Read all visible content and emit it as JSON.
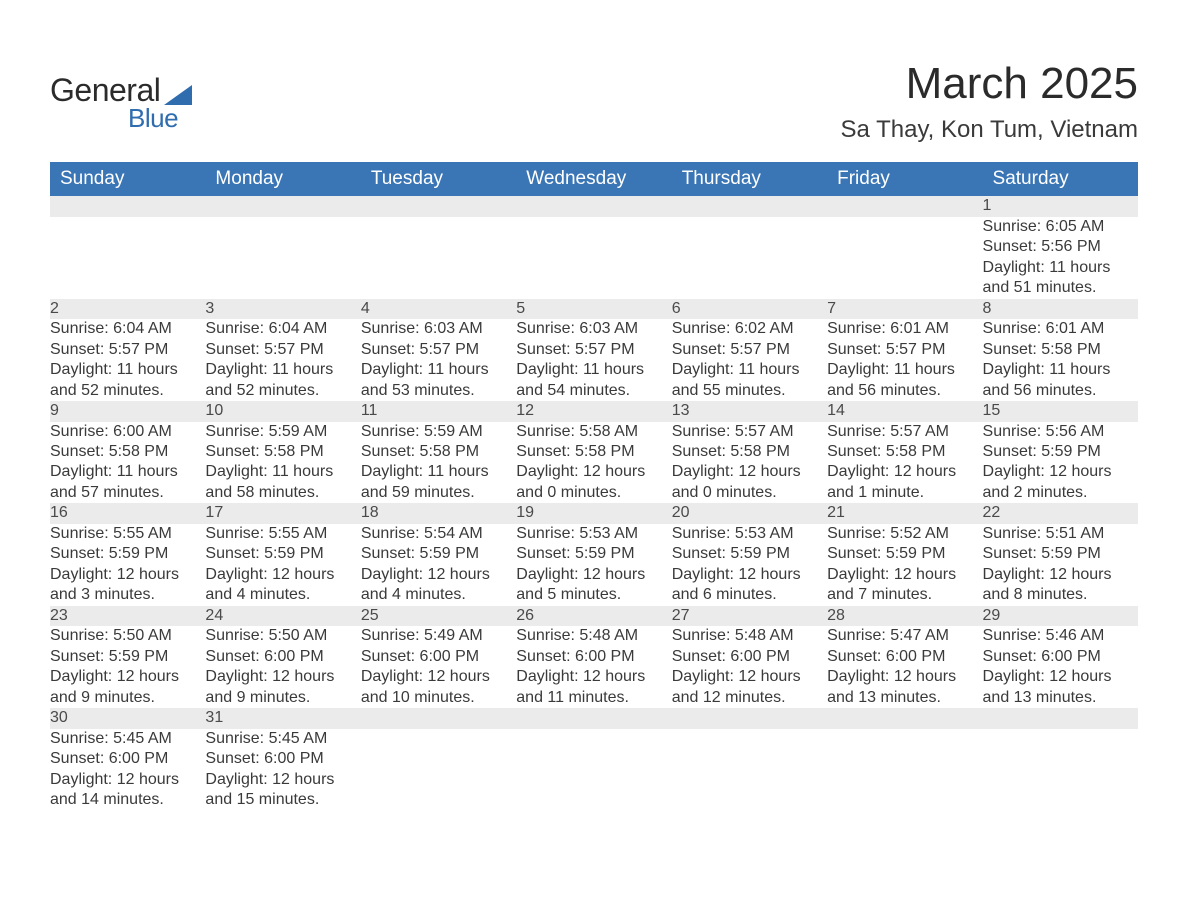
{
  "brand": {
    "word1": "General",
    "word2": "Blue",
    "accent_color": "#2f6daf"
  },
  "title": "March 2025",
  "location": "Sa Thay, Kon Tum, Vietnam",
  "header_bg": "#3a75b5",
  "header_fg": "#ffffff",
  "daynum_bg": "#ebebeb",
  "row_divider": "#3a75b5",
  "text_color": "#3a3a3a",
  "columns": [
    "Sunday",
    "Monday",
    "Tuesday",
    "Wednesday",
    "Thursday",
    "Friday",
    "Saturday"
  ],
  "weeks": [
    [
      null,
      null,
      null,
      null,
      null,
      null,
      {
        "n": "1",
        "sunrise": "6:05 AM",
        "sunset": "5:56 PM",
        "daylight": "11 hours and 51 minutes."
      }
    ],
    [
      {
        "n": "2",
        "sunrise": "6:04 AM",
        "sunset": "5:57 PM",
        "daylight": "11 hours and 52 minutes."
      },
      {
        "n": "3",
        "sunrise": "6:04 AM",
        "sunset": "5:57 PM",
        "daylight": "11 hours and 52 minutes."
      },
      {
        "n": "4",
        "sunrise": "6:03 AM",
        "sunset": "5:57 PM",
        "daylight": "11 hours and 53 minutes."
      },
      {
        "n": "5",
        "sunrise": "6:03 AM",
        "sunset": "5:57 PM",
        "daylight": "11 hours and 54 minutes."
      },
      {
        "n": "6",
        "sunrise": "6:02 AM",
        "sunset": "5:57 PM",
        "daylight": "11 hours and 55 minutes."
      },
      {
        "n": "7",
        "sunrise": "6:01 AM",
        "sunset": "5:57 PM",
        "daylight": "11 hours and 56 minutes."
      },
      {
        "n": "8",
        "sunrise": "6:01 AM",
        "sunset": "5:58 PM",
        "daylight": "11 hours and 56 minutes."
      }
    ],
    [
      {
        "n": "9",
        "sunrise": "6:00 AM",
        "sunset": "5:58 PM",
        "daylight": "11 hours and 57 minutes."
      },
      {
        "n": "10",
        "sunrise": "5:59 AM",
        "sunset": "5:58 PM",
        "daylight": "11 hours and 58 minutes."
      },
      {
        "n": "11",
        "sunrise": "5:59 AM",
        "sunset": "5:58 PM",
        "daylight": "11 hours and 59 minutes."
      },
      {
        "n": "12",
        "sunrise": "5:58 AM",
        "sunset": "5:58 PM",
        "daylight": "12 hours and 0 minutes."
      },
      {
        "n": "13",
        "sunrise": "5:57 AM",
        "sunset": "5:58 PM",
        "daylight": "12 hours and 0 minutes."
      },
      {
        "n": "14",
        "sunrise": "5:57 AM",
        "sunset": "5:58 PM",
        "daylight": "12 hours and 1 minute."
      },
      {
        "n": "15",
        "sunrise": "5:56 AM",
        "sunset": "5:59 PM",
        "daylight": "12 hours and 2 minutes."
      }
    ],
    [
      {
        "n": "16",
        "sunrise": "5:55 AM",
        "sunset": "5:59 PM",
        "daylight": "12 hours and 3 minutes."
      },
      {
        "n": "17",
        "sunrise": "5:55 AM",
        "sunset": "5:59 PM",
        "daylight": "12 hours and 4 minutes."
      },
      {
        "n": "18",
        "sunrise": "5:54 AM",
        "sunset": "5:59 PM",
        "daylight": "12 hours and 4 minutes."
      },
      {
        "n": "19",
        "sunrise": "5:53 AM",
        "sunset": "5:59 PM",
        "daylight": "12 hours and 5 minutes."
      },
      {
        "n": "20",
        "sunrise": "5:53 AM",
        "sunset": "5:59 PM",
        "daylight": "12 hours and 6 minutes."
      },
      {
        "n": "21",
        "sunrise": "5:52 AM",
        "sunset": "5:59 PM",
        "daylight": "12 hours and 7 minutes."
      },
      {
        "n": "22",
        "sunrise": "5:51 AM",
        "sunset": "5:59 PM",
        "daylight": "12 hours and 8 minutes."
      }
    ],
    [
      {
        "n": "23",
        "sunrise": "5:50 AM",
        "sunset": "5:59 PM",
        "daylight": "12 hours and 9 minutes."
      },
      {
        "n": "24",
        "sunrise": "5:50 AM",
        "sunset": "6:00 PM",
        "daylight": "12 hours and 9 minutes."
      },
      {
        "n": "25",
        "sunrise": "5:49 AM",
        "sunset": "6:00 PM",
        "daylight": "12 hours and 10 minutes."
      },
      {
        "n": "26",
        "sunrise": "5:48 AM",
        "sunset": "6:00 PM",
        "daylight": "12 hours and 11 minutes."
      },
      {
        "n": "27",
        "sunrise": "5:48 AM",
        "sunset": "6:00 PM",
        "daylight": "12 hours and 12 minutes."
      },
      {
        "n": "28",
        "sunrise": "5:47 AM",
        "sunset": "6:00 PM",
        "daylight": "12 hours and 13 minutes."
      },
      {
        "n": "29",
        "sunrise": "5:46 AM",
        "sunset": "6:00 PM",
        "daylight": "12 hours and 13 minutes."
      }
    ],
    [
      {
        "n": "30",
        "sunrise": "5:45 AM",
        "sunset": "6:00 PM",
        "daylight": "12 hours and 14 minutes."
      },
      {
        "n": "31",
        "sunrise": "5:45 AM",
        "sunset": "6:00 PM",
        "daylight": "12 hours and 15 minutes."
      },
      null,
      null,
      null,
      null,
      null
    ]
  ],
  "labels": {
    "sunrise": "Sunrise: ",
    "sunset": "Sunset: ",
    "daylight": "Daylight: "
  }
}
